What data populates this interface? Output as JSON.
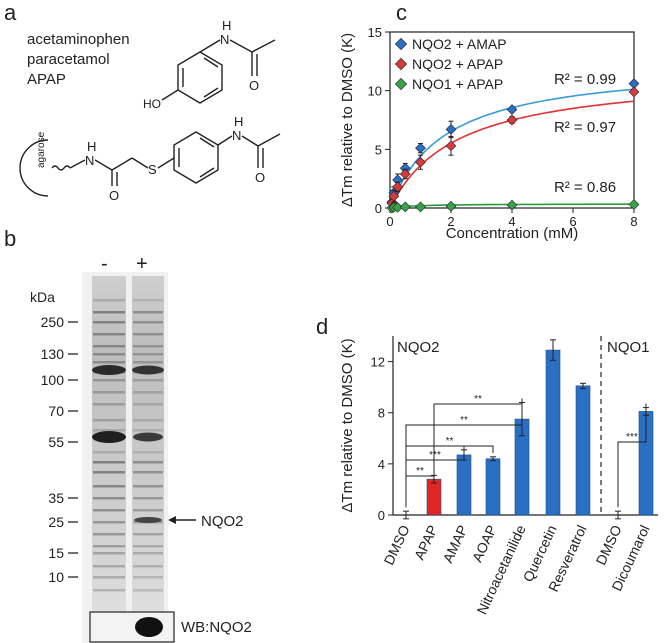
{
  "panels": {
    "a": {
      "letter": "a",
      "names": [
        "acetaminophen",
        "paracetamol",
        "APAP"
      ],
      "struct1": {
        "nh": "N",
        "h": "H",
        "ho": "HO",
        "o": "O"
      },
      "struct2": {
        "agarose": "agarose",
        "nh": "N",
        "h": "H",
        "o": "O",
        "s": "S",
        "o2": "O"
      }
    },
    "b": {
      "letter": "b",
      "lane_minus": "-",
      "lane_plus": "+",
      "kda_label": "kDa",
      "markers": [
        "250",
        "130",
        "100",
        "70",
        "55",
        "35",
        "25",
        "15",
        "10"
      ],
      "nqo2_label": "NQO2",
      "wb_label": "WB:NQO2"
    },
    "c": {
      "letter": "c",
      "chart_data": {
        "type": "scatter",
        "xlabel": "Concentration (mM)",
        "ylabel": "ΔTm relative to DMSO (K)",
        "xlim": [
          0,
          8
        ],
        "ylim": [
          0,
          15
        ],
        "xticks": [
          "0",
          "2",
          "4",
          "6",
          "8"
        ],
        "yticks": [
          "0",
          "5",
          "10",
          "15"
        ],
        "legend_position": "top-left",
        "series": [
          {
            "name": "NQO2 + AMAP",
            "color": "#2b6fc2",
            "fit_color": "#3a9bd6",
            "r2": "R² = 0.99",
            "x": [
              0.0625,
              0.125,
              0.25,
              0.5,
              1,
              2,
              4,
              8
            ],
            "y": [
              0.5,
              1.3,
              2.4,
              3.4,
              5.1,
              6.7,
              8.4,
              10.6
            ],
            "err": [
              0.6,
              0.5,
              0.5,
              0.4,
              0.4,
              0.7,
              0.2,
              0.2
            ]
          },
          {
            "name": "NQO2 + APAP",
            "color": "#d63a3a",
            "fit_color": "#e03030",
            "r2": "R² = 0.97",
            "x": [
              0.0625,
              0.125,
              0.25,
              0.5,
              1,
              2,
              4,
              8
            ],
            "y": [
              0.4,
              1.0,
              1.8,
              2.9,
              3.9,
              5.3,
              7.5,
              9.9
            ],
            "err": [
              0.5,
              0.5,
              0.4,
              0.4,
              0.6,
              0.8,
              0.3,
              0.2
            ]
          },
          {
            "name": "NQO1 + APAP",
            "color": "#3aa14a",
            "fit_color": "#2e9a3e",
            "r2": "R² = 0.86",
            "x": [
              0.0625,
              0.125,
              0.25,
              0.5,
              1,
              2,
              4,
              8
            ],
            "y": [
              0.0,
              0.05,
              0.05,
              0.1,
              0.1,
              0.15,
              0.25,
              0.3
            ],
            "err": [
              0.2,
              0.2,
              0.2,
              0.2,
              0.2,
              0.2,
              0.2,
              0.2
            ]
          }
        ]
      }
    },
    "d": {
      "letter": "d",
      "chart_data": {
        "type": "bar",
        "ylabel": "ΔTm relative to DMSO (K)",
        "ylim": [
          0,
          14
        ],
        "yticks": [
          "0",
          "4",
          "8",
          "12"
        ],
        "group_labels": [
          "NQO2",
          "NQO1"
        ],
        "categories": [
          "DMSO",
          "APAP",
          "AMAP",
          "AOAP",
          "Nitroacetanilide",
          "Quercetin",
          "Resveratrol",
          "DMSO",
          "Dicoumarol"
        ],
        "values": [
          0,
          2.8,
          4.7,
          4.4,
          7.5,
          12.9,
          10.1,
          0,
          8.1
        ],
        "errors": [
          0.3,
          0.3,
          0.4,
          0.15,
          1.3,
          0.8,
          0.2,
          0.3,
          0.3
        ],
        "colors": [
          "#2b6fc2",
          "#e02525",
          "#2b6fc2",
          "#2b6fc2",
          "#2b6fc2",
          "#2b6fc2",
          "#2b6fc2",
          "#2b6fc2",
          "#2b6fc2"
        ],
        "significance": [
          {
            "from": 0,
            "to": 1,
            "label": "**"
          },
          {
            "from": 0,
            "to": 2,
            "label": "***"
          },
          {
            "from": 0,
            "to": 3,
            "label": "**"
          },
          {
            "from": 0,
            "to": 4,
            "label": "**"
          },
          {
            "from": 1,
            "to": 4,
            "label": "**"
          },
          {
            "from": 7,
            "to": 8,
            "label": "***"
          }
        ]
      }
    }
  }
}
